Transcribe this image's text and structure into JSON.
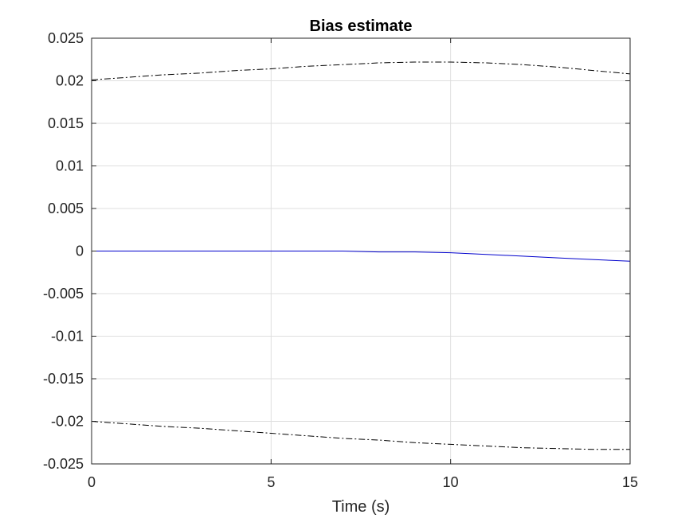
{
  "chart_data": {
    "type": "line",
    "title": "Bias estimate",
    "xlabel": "Time (s)",
    "ylabel": "",
    "xlim": [
      0,
      15
    ],
    "ylim": [
      -0.025,
      0.025
    ],
    "xticks": [
      0,
      5,
      10,
      15
    ],
    "xtick_labels": [
      "0",
      "5",
      "10",
      "15"
    ],
    "yticks": [
      0.025,
      0.02,
      0.015,
      0.01,
      0.005,
      0,
      -0.005,
      -0.01,
      -0.015,
      -0.02,
      -0.025
    ],
    "ytick_labels": [
      "0.025",
      "0.02",
      "0.015",
      "0.01",
      "0.005",
      "0",
      "-0.005",
      "-0.01",
      "-0.015",
      "-0.02",
      "-0.025"
    ],
    "grid": true,
    "legend": "none",
    "series": [
      {
        "color": "#000000",
        "style": "dashdot",
        "x": [
          0,
          1,
          2,
          3,
          4,
          5,
          6,
          7,
          8,
          9,
          10,
          11,
          12,
          13,
          14,
          15
        ],
        "y": [
          0.0201,
          0.0204,
          0.0207,
          0.0209,
          0.0212,
          0.0214,
          0.0217,
          0.0219,
          0.0221,
          0.0222,
          0.0222,
          0.0221,
          0.0219,
          0.0216,
          0.0212,
          0.0208
        ]
      },
      {
        "color": "#0000cc",
        "style": "solid",
        "x": [
          0,
          1,
          2,
          3,
          4,
          5,
          6,
          7,
          8,
          9,
          10,
          11,
          12,
          13,
          14,
          15
        ],
        "y": [
          0,
          0,
          0,
          0,
          0,
          0,
          0,
          0,
          -0.0001,
          -0.0001,
          -0.0002,
          -0.0004,
          -0.0006,
          -0.0008,
          -0.001,
          -0.0012
        ]
      },
      {
        "color": "#000000",
        "style": "dashdot",
        "x": [
          0,
          1,
          2,
          3,
          4,
          5,
          6,
          7,
          8,
          9,
          10,
          11,
          12,
          13,
          14,
          15
        ],
        "y": [
          -0.02,
          -0.0203,
          -0.0206,
          -0.0208,
          -0.0211,
          -0.0214,
          -0.0217,
          -0.022,
          -0.0222,
          -0.0225,
          -0.0227,
          -0.0229,
          -0.0231,
          -0.0232,
          -0.0233,
          -0.0233
        ]
      }
    ]
  }
}
